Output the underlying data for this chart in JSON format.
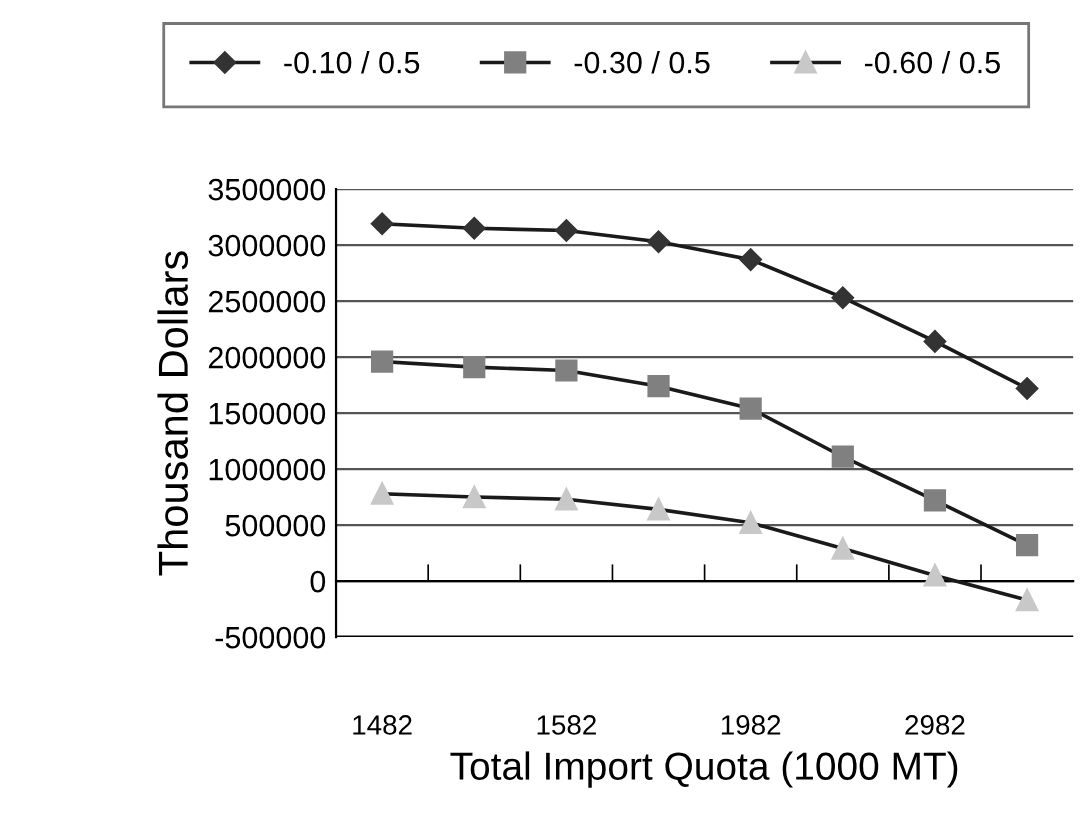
{
  "chart_data": {
    "type": "line",
    "xlabel": "Total Import Quota (1000 MT)",
    "ylabel": "Thousand Dollars",
    "categories": [
      "1482",
      null,
      "1582",
      null,
      "1982",
      null,
      "2982",
      null
    ],
    "series": [
      {
        "name": "-0.10 / 0.5",
        "color": "#333333",
        "marker": "diamond",
        "values": [
          3190000,
          3150000,
          3130000,
          3030000,
          2870000,
          2530000,
          2140000,
          1720000
        ]
      },
      {
        "name": "-0.30 / 0.5",
        "color": "#808080",
        "marker": "square",
        "values": [
          1960000,
          1910000,
          1880000,
          1740000,
          1540000,
          1110000,
          720000,
          320000
        ]
      },
      {
        "name": "-0.60 / 0.5",
        "color": "#c8c8c8",
        "marker": "triangle",
        "values": [
          780000,
          750000,
          730000,
          640000,
          520000,
          290000,
          50000,
          -170000
        ]
      }
    ],
    "ylim": [
      -500000,
      3500000
    ],
    "yticks": [
      -500000,
      0,
      500000,
      1000000,
      1500000,
      2000000,
      2500000,
      3000000,
      3500000
    ],
    "grid": "y",
    "legend": "top",
    "line_style": "solid"
  }
}
